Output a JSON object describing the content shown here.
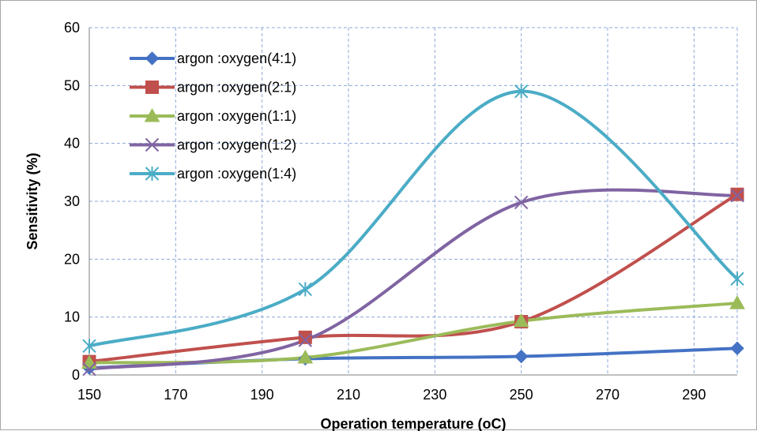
{
  "chart_data": {
    "type": "line",
    "title": "",
    "xlabel": "Operation temperature (oC)",
    "ylabel": "Sensitivity (%)",
    "xlim": [
      150,
      300
    ],
    "ylim": [
      0,
      60
    ],
    "x_ticks": [
      150,
      170,
      190,
      210,
      230,
      250,
      270,
      290
    ],
    "y_ticks": [
      0,
      10,
      20,
      30,
      40,
      50,
      60
    ],
    "grid": "dashed",
    "smooth": true,
    "legend_position": "top-left",
    "series": [
      {
        "name": "argon :oxygen(4:1)",
        "color": "#4472c4",
        "marker": "diamond",
        "x": [
          150,
          200,
          250,
          300
        ],
        "y": [
          1.2,
          2.8,
          3.2,
          4.6
        ]
      },
      {
        "name": "argon :oxygen(2:1)",
        "color": "#c0504d",
        "marker": "square",
        "x": [
          150,
          200,
          250,
          300
        ],
        "y": [
          2.3,
          6.5,
          9.2,
          31.2
        ]
      },
      {
        "name": "argon :oxygen(1:1)",
        "color": "#9bbb59",
        "marker": "triangle",
        "x": [
          150,
          200,
          250,
          300
        ],
        "y": [
          2.1,
          3.0,
          9.3,
          12.4
        ]
      },
      {
        "name": "argon :oxygen(1:2)",
        "color": "#8064a2",
        "marker": "x",
        "x": [
          150,
          200,
          250,
          300
        ],
        "y": [
          1.0,
          6.0,
          29.8,
          31.0
        ]
      },
      {
        "name": "argon :oxygen(1:4)",
        "color": "#4bacc6",
        "marker": "star",
        "x": [
          150,
          200,
          250,
          300
        ],
        "y": [
          5.0,
          14.8,
          49.0,
          16.6
        ]
      }
    ]
  }
}
